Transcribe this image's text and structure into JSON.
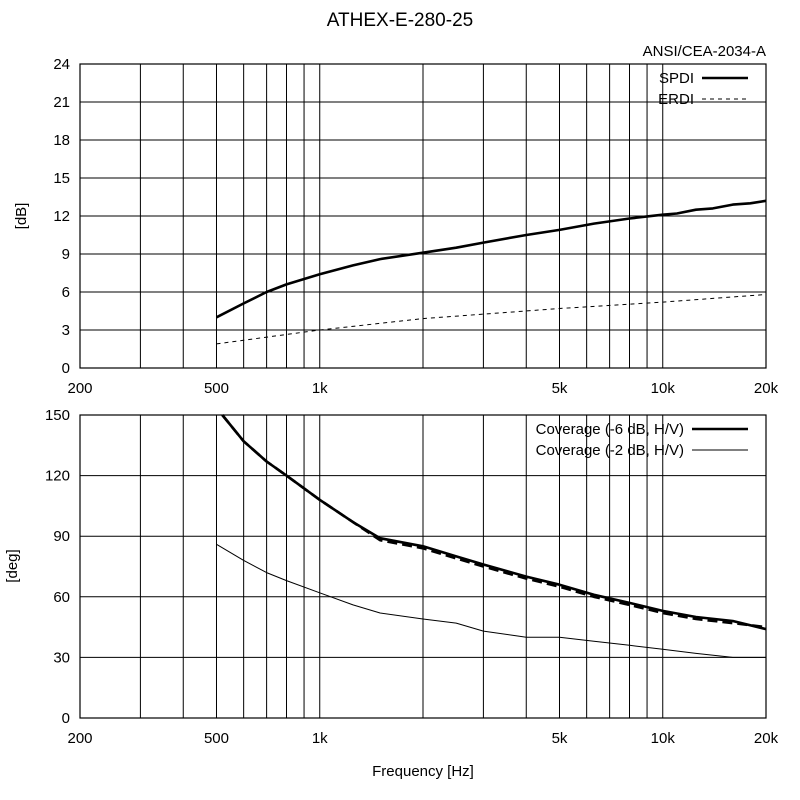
{
  "chart_data": [
    {
      "type": "line",
      "title": "ATHEX-E-280-25",
      "subtitle": "ANSI/CEA-2034-A",
      "xlabel": "",
      "ylabel": "[dB]",
      "xscale": "log",
      "xlim": [
        200,
        20000
      ],
      "ylim": [
        0,
        24
      ],
      "yticks": [
        0,
        3,
        6,
        9,
        12,
        15,
        18,
        21,
        24
      ],
      "xticks": [
        {
          "value": 200,
          "label": "200"
        },
        {
          "value": 500,
          "label": "500"
        },
        {
          "value": 1000,
          "label": "1k"
        },
        {
          "value": 5000,
          "label": "5k"
        },
        {
          "value": 10000,
          "label": "10k"
        },
        {
          "value": 20000,
          "label": "20k"
        }
      ],
      "grid": true,
      "legend_position": "top-right",
      "series": [
        {
          "name": "SPDI",
          "style": "thick-solid",
          "x": [
            500,
            600,
            700,
            800,
            1000,
            1250,
            1500,
            2000,
            2500,
            3000,
            4000,
            5000,
            6300,
            8000,
            10000,
            11000,
            12500,
            14000,
            16000,
            18000,
            20000
          ],
          "values": [
            4.0,
            5.1,
            6.0,
            6.6,
            7.4,
            8.1,
            8.6,
            9.1,
            9.5,
            9.9,
            10.5,
            10.9,
            11.4,
            11.8,
            12.1,
            12.2,
            12.5,
            12.6,
            12.9,
            13.0,
            13.2
          ]
        },
        {
          "name": "ERDI",
          "style": "dashed",
          "x": [
            500,
            1000,
            2000,
            5000,
            10000,
            20000
          ],
          "values": [
            1.9,
            3.0,
            3.9,
            4.7,
            5.2,
            5.8
          ]
        }
      ]
    },
    {
      "type": "line",
      "title": "",
      "xlabel": "Frequency [Hz]",
      "ylabel": "[deg]",
      "xscale": "log",
      "xlim": [
        200,
        20000
      ],
      "ylim": [
        0,
        150
      ],
      "yticks": [
        0,
        30,
        60,
        90,
        120,
        150
      ],
      "xticks": [
        {
          "value": 200,
          "label": "200"
        },
        {
          "value": 500,
          "label": "500"
        },
        {
          "value": 1000,
          "label": "1k"
        },
        {
          "value": 5000,
          "label": "5k"
        },
        {
          "value": 10000,
          "label": "10k"
        },
        {
          "value": 20000,
          "label": "20k"
        }
      ],
      "grid": true,
      "legend_position": "top-right",
      "series": [
        {
          "name": "Coverage (-6 dB, H/V)",
          "style": "thick-solid",
          "x": [
            520,
            600,
            700,
            800,
            1000,
            1250,
            1500,
            2000,
            2500,
            3000,
            4000,
            5000,
            6300,
            8000,
            10000,
            12500,
            16000,
            20000
          ],
          "values": [
            150,
            137,
            127,
            120,
            108,
            97,
            89,
            85,
            80,
            76,
            70,
            66,
            61,
            57,
            53,
            50,
            48,
            44
          ]
        },
        {
          "name": "Coverage (-6 dB, H/V) V",
          "legend": false,
          "style": "thick-dashed",
          "x": [
            520,
            600,
            700,
            800,
            1000,
            1250,
            1500,
            2000,
            2500,
            3000,
            4000,
            5000,
            6300,
            8000,
            10000,
            12500,
            16000,
            20000
          ],
          "values": [
            150,
            137,
            127,
            120,
            108,
            97,
            88,
            84,
            79,
            75,
            69,
            65,
            60,
            56,
            52,
            49,
            47,
            45
          ]
        },
        {
          "name": "Coverage (-2 dB, H/V)",
          "style": "thin-solid",
          "x": [
            500,
            600,
            700,
            800,
            1000,
            1250,
            1500,
            2000,
            2500,
            3000,
            4000,
            5000,
            6300,
            8000,
            10000,
            12500,
            16000,
            20000
          ],
          "values": [
            86,
            78,
            72,
            68,
            62,
            56,
            52,
            49,
            47,
            43,
            40,
            40,
            38,
            36,
            34,
            32,
            30,
            30
          ]
        }
      ]
    }
  ],
  "colors": {
    "line": "#000000",
    "grid": "#000000",
    "background": "#ffffff"
  }
}
